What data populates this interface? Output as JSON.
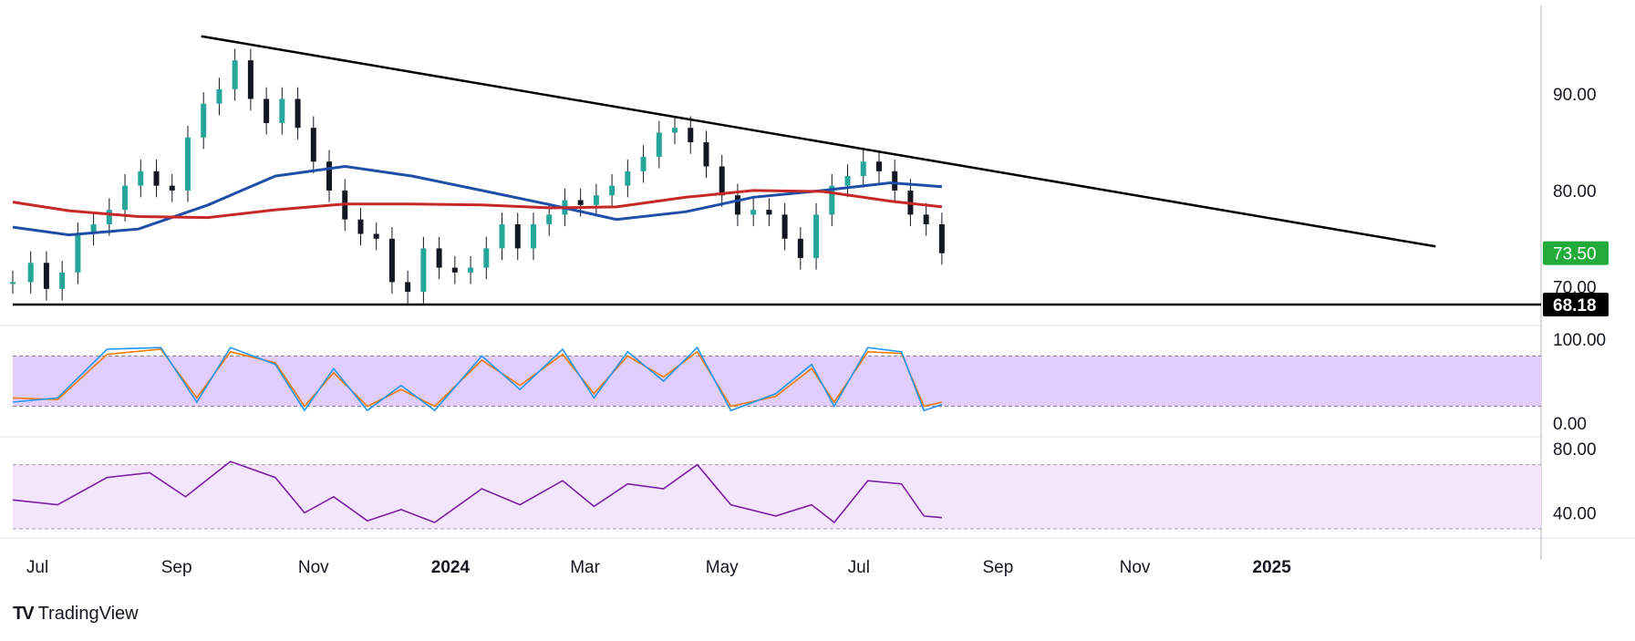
{
  "brand": {
    "name": "TradingView",
    "logo_text": "TV"
  },
  "colors": {
    "candle_up": "#26a69a",
    "candle_down": "#131722",
    "ma_fast": "#1f4ea8",
    "ma_slow": "#c62828",
    "trendline": "#000000",
    "stoch_k": "#2196f3",
    "stoch_d": "#f57c00",
    "stoch_band": "#e1cdfa",
    "rsi_line": "#7b1fa2",
    "rsi_band": "#f3e5fb",
    "current_price_badge": "#22ab3b",
    "support_badge": "#000000"
  },
  "price_axis": {
    "ticks": [
      "90.00",
      "80.00",
      "70.00"
    ],
    "current_price_label": "73.50",
    "support_label": "68.18"
  },
  "stoch_axis": {
    "ticks": [
      "100.00",
      "0.00"
    ]
  },
  "rsi_axis": {
    "ticks": [
      "80.00",
      "40.00"
    ]
  },
  "time_axis": {
    "ticks": [
      "Jul",
      "Sep",
      "Nov",
      "2024",
      "Mar",
      "May",
      "Jul",
      "Sep",
      "Nov",
      "2025"
    ]
  },
  "chart_data": {
    "type": "candlestick",
    "price_range": [
      66,
      99
    ],
    "grid": false,
    "horizontal_support": 68.18,
    "current_price": 73.5,
    "descending_trendline": [
      {
        "date": "2023-09-12",
        "value": 96.0
      },
      {
        "date": "2025-03-15",
        "value": 74.2
      }
    ],
    "price_series": [
      {
        "date": "2023-06-20",
        "value": 70.5
      },
      {
        "date": "2023-06-28",
        "value": 72.5
      },
      {
        "date": "2023-07-05",
        "value": 69.8
      },
      {
        "date": "2023-07-12",
        "value": 71.5
      },
      {
        "date": "2023-07-19",
        "value": 75.5
      },
      {
        "date": "2023-07-26",
        "value": 76.5
      },
      {
        "date": "2023-08-02",
        "value": 78.0
      },
      {
        "date": "2023-08-09",
        "value": 80.5
      },
      {
        "date": "2023-08-16",
        "value": 82.0
      },
      {
        "date": "2023-08-23",
        "value": 80.5
      },
      {
        "date": "2023-08-30",
        "value": 80.0
      },
      {
        "date": "2023-09-06",
        "value": 85.5
      },
      {
        "date": "2023-09-13",
        "value": 89.0
      },
      {
        "date": "2023-09-20",
        "value": 90.5
      },
      {
        "date": "2023-09-27",
        "value": 93.5
      },
      {
        "date": "2023-10-04",
        "value": 89.5
      },
      {
        "date": "2023-10-11",
        "value": 87.0
      },
      {
        "date": "2023-10-18",
        "value": 89.5
      },
      {
        "date": "2023-10-25",
        "value": 86.5
      },
      {
        "date": "2023-11-01",
        "value": 83.0
      },
      {
        "date": "2023-11-08",
        "value": 80.0
      },
      {
        "date": "2023-11-15",
        "value": 77.0
      },
      {
        "date": "2023-11-22",
        "value": 75.5
      },
      {
        "date": "2023-11-29",
        "value": 75.0
      },
      {
        "date": "2023-12-06",
        "value": 70.5
      },
      {
        "date": "2023-12-13",
        "value": 69.5
      },
      {
        "date": "2023-12-20",
        "value": 74.0
      },
      {
        "date": "2023-12-27",
        "value": 72.0
      },
      {
        "date": "2024-01-03",
        "value": 71.5
      },
      {
        "date": "2024-01-10",
        "value": 72.0
      },
      {
        "date": "2024-01-17",
        "value": 74.0
      },
      {
        "date": "2024-01-24",
        "value": 76.5
      },
      {
        "date": "2024-01-31",
        "value": 74.0
      },
      {
        "date": "2024-02-07",
        "value": 76.5
      },
      {
        "date": "2024-02-14",
        "value": 77.5
      },
      {
        "date": "2024-02-21",
        "value": 79.0
      },
      {
        "date": "2024-02-28",
        "value": 78.5
      },
      {
        "date": "2024-03-06",
        "value": 79.5
      },
      {
        "date": "2024-03-13",
        "value": 80.5
      },
      {
        "date": "2024-03-20",
        "value": 82.0
      },
      {
        "date": "2024-03-27",
        "value": 83.5
      },
      {
        "date": "2024-04-03",
        "value": 86.0
      },
      {
        "date": "2024-04-10",
        "value": 86.5
      },
      {
        "date": "2024-04-17",
        "value": 85.0
      },
      {
        "date": "2024-04-24",
        "value": 82.5
      },
      {
        "date": "2024-05-01",
        "value": 79.5
      },
      {
        "date": "2024-05-08",
        "value": 77.5
      },
      {
        "date": "2024-05-15",
        "value": 78.0
      },
      {
        "date": "2024-05-22",
        "value": 77.5
      },
      {
        "date": "2024-05-29",
        "value": 75.0
      },
      {
        "date": "2024-06-05",
        "value": 73.0
      },
      {
        "date": "2024-06-12",
        "value": 77.5
      },
      {
        "date": "2024-06-19",
        "value": 80.5
      },
      {
        "date": "2024-06-26",
        "value": 81.5
      },
      {
        "date": "2024-07-03",
        "value": 83.0
      },
      {
        "date": "2024-07-10",
        "value": 82.0
      },
      {
        "date": "2024-07-17",
        "value": 80.0
      },
      {
        "date": "2024-07-24",
        "value": 77.5
      },
      {
        "date": "2024-07-31",
        "value": 76.5
      },
      {
        "date": "2024-08-07",
        "value": 73.5
      }
    ],
    "series": [
      {
        "name": "",
        "color": "#1f4ea8",
        "kind": "moving_average",
        "values": [
          {
            "date": "2023-06-20",
            "value": 76.2
          },
          {
            "date": "2023-07-15",
            "value": 75.4
          },
          {
            "date": "2023-08-15",
            "value": 76.0
          },
          {
            "date": "2023-09-15",
            "value": 78.5
          },
          {
            "date": "2023-10-15",
            "value": 81.5
          },
          {
            "date": "2023-11-15",
            "value": 82.5
          },
          {
            "date": "2023-12-15",
            "value": 81.5
          },
          {
            "date": "2024-01-15",
            "value": 80.0
          },
          {
            "date": "2024-02-15",
            "value": 78.5
          },
          {
            "date": "2024-03-15",
            "value": 77.0
          },
          {
            "date": "2024-04-15",
            "value": 77.8
          },
          {
            "date": "2024-05-15",
            "value": 79.3
          },
          {
            "date": "2024-06-15",
            "value": 80.0
          },
          {
            "date": "2024-07-15",
            "value": 80.8
          },
          {
            "date": "2024-08-07",
            "value": 80.4
          }
        ]
      },
      {
        "name": "",
        "color": "#c62828",
        "kind": "moving_average",
        "values": [
          {
            "date": "2023-06-20",
            "value": 78.8
          },
          {
            "date": "2023-07-15",
            "value": 77.9
          },
          {
            "date": "2023-08-15",
            "value": 77.3
          },
          {
            "date": "2023-09-15",
            "value": 77.2
          },
          {
            "date": "2023-10-15",
            "value": 78.0
          },
          {
            "date": "2023-11-15",
            "value": 78.6
          },
          {
            "date": "2023-12-15",
            "value": 78.6
          },
          {
            "date": "2024-01-15",
            "value": 78.5
          },
          {
            "date": "2024-02-15",
            "value": 78.2
          },
          {
            "date": "2024-03-15",
            "value": 78.3
          },
          {
            "date": "2024-04-15",
            "value": 79.3
          },
          {
            "date": "2024-05-15",
            "value": 80.0
          },
          {
            "date": "2024-06-15",
            "value": 79.9
          },
          {
            "date": "2024-07-15",
            "value": 78.9
          },
          {
            "date": "2024-08-07",
            "value": 78.3
          }
        ]
      }
    ],
    "stochastic": {
      "range": [
        0,
        100
      ],
      "band": [
        20,
        80
      ],
      "k": [
        {
          "date": "2023-06-20",
          "value": 25
        },
        {
          "date": "2023-07-10",
          "value": 30
        },
        {
          "date": "2023-08-01",
          "value": 88
        },
        {
          "date": "2023-08-25",
          "value": 90
        },
        {
          "date": "2023-09-10",
          "value": 25
        },
        {
          "date": "2023-09-25",
          "value": 90
        },
        {
          "date": "2023-10-15",
          "value": 70
        },
        {
          "date": "2023-10-28",
          "value": 15
        },
        {
          "date": "2023-11-10",
          "value": 65
        },
        {
          "date": "2023-11-25",
          "value": 15
        },
        {
          "date": "2023-12-10",
          "value": 45
        },
        {
          "date": "2023-12-25",
          "value": 15
        },
        {
          "date": "2024-01-15",
          "value": 80
        },
        {
          "date": "2024-02-01",
          "value": 40
        },
        {
          "date": "2024-02-20",
          "value": 88
        },
        {
          "date": "2024-03-05",
          "value": 30
        },
        {
          "date": "2024-03-20",
          "value": 85
        },
        {
          "date": "2024-04-05",
          "value": 50
        },
        {
          "date": "2024-04-20",
          "value": 90
        },
        {
          "date": "2024-05-05",
          "value": 15
        },
        {
          "date": "2024-05-25",
          "value": 35
        },
        {
          "date": "2024-06-10",
          "value": 70
        },
        {
          "date": "2024-06-20",
          "value": 20
        },
        {
          "date": "2024-07-05",
          "value": 90
        },
        {
          "date": "2024-07-20",
          "value": 85
        },
        {
          "date": "2024-07-30",
          "value": 15
        },
        {
          "date": "2024-08-07",
          "value": 22
        }
      ],
      "d": [
        {
          "date": "2023-06-20",
          "value": 30
        },
        {
          "date": "2023-07-10",
          "value": 28
        },
        {
          "date": "2023-08-01",
          "value": 82
        },
        {
          "date": "2023-08-25",
          "value": 88
        },
        {
          "date": "2023-09-10",
          "value": 30
        },
        {
          "date": "2023-09-25",
          "value": 85
        },
        {
          "date": "2023-10-15",
          "value": 72
        },
        {
          "date": "2023-10-28",
          "value": 20
        },
        {
          "date": "2023-11-10",
          "value": 60
        },
        {
          "date": "2023-11-25",
          "value": 20
        },
        {
          "date": "2023-12-10",
          "value": 40
        },
        {
          "date": "2023-12-25",
          "value": 20
        },
        {
          "date": "2024-01-15",
          "value": 75
        },
        {
          "date": "2024-02-01",
          "value": 45
        },
        {
          "date": "2024-02-20",
          "value": 82
        },
        {
          "date": "2024-03-05",
          "value": 35
        },
        {
          "date": "2024-03-20",
          "value": 80
        },
        {
          "date": "2024-04-05",
          "value": 55
        },
        {
          "date": "2024-04-20",
          "value": 85
        },
        {
          "date": "2024-05-05",
          "value": 20
        },
        {
          "date": "2024-05-25",
          "value": 32
        },
        {
          "date": "2024-06-10",
          "value": 65
        },
        {
          "date": "2024-06-20",
          "value": 25
        },
        {
          "date": "2024-07-05",
          "value": 85
        },
        {
          "date": "2024-07-20",
          "value": 83
        },
        {
          "date": "2024-07-30",
          "value": 20
        },
        {
          "date": "2024-08-07",
          "value": 25
        }
      ]
    },
    "rsi": {
      "range": [
        30,
        80
      ],
      "band": [
        30,
        70
      ],
      "values": [
        {
          "date": "2023-06-20",
          "value": 48
        },
        {
          "date": "2023-07-10",
          "value": 45
        },
        {
          "date": "2023-08-01",
          "value": 62
        },
        {
          "date": "2023-08-20",
          "value": 65
        },
        {
          "date": "2023-09-05",
          "value": 50
        },
        {
          "date": "2023-09-25",
          "value": 72
        },
        {
          "date": "2023-10-15",
          "value": 62
        },
        {
          "date": "2023-10-28",
          "value": 40
        },
        {
          "date": "2023-11-10",
          "value": 50
        },
        {
          "date": "2023-11-25",
          "value": 35
        },
        {
          "date": "2023-12-10",
          "value": 42
        },
        {
          "date": "2023-12-25",
          "value": 34
        },
        {
          "date": "2024-01-15",
          "value": 55
        },
        {
          "date": "2024-02-01",
          "value": 45
        },
        {
          "date": "2024-02-20",
          "value": 60
        },
        {
          "date": "2024-03-05",
          "value": 44
        },
        {
          "date": "2024-03-20",
          "value": 58
        },
        {
          "date": "2024-04-05",
          "value": 55
        },
        {
          "date": "2024-04-20",
          "value": 70
        },
        {
          "date": "2024-05-05",
          "value": 45
        },
        {
          "date": "2024-05-25",
          "value": 38
        },
        {
          "date": "2024-06-10",
          "value": 45
        },
        {
          "date": "2024-06-20",
          "value": 34
        },
        {
          "date": "2024-07-05",
          "value": 60
        },
        {
          "date": "2024-07-20",
          "value": 58
        },
        {
          "date": "2024-07-30",
          "value": 38
        },
        {
          "date": "2024-08-07",
          "value": 37
        }
      ]
    }
  }
}
